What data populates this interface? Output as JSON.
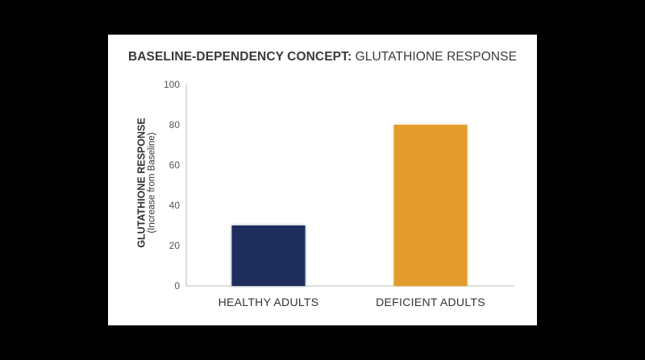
{
  "chart_data": {
    "type": "bar",
    "title_bold": "BASELINE-DEPENDENCY CONCEPT:",
    "title_light": "GLUTATHIONE RESPONSE",
    "ylabel": "GLUTATHIONE RESPONSE",
    "ylabel_sub": "(Increase from Baseline)",
    "xlabel": "",
    "categories": [
      "HEALTHY ADULTS",
      "DEFICIENT ADULTS"
    ],
    "values": [
      30,
      80
    ],
    "colors": [
      "#1f2d5c",
      "#e39b2b"
    ],
    "ylim": [
      0,
      100
    ],
    "yticks": [
      "0",
      "20",
      "40",
      "60",
      "80",
      "100"
    ],
    "grid": false
  }
}
